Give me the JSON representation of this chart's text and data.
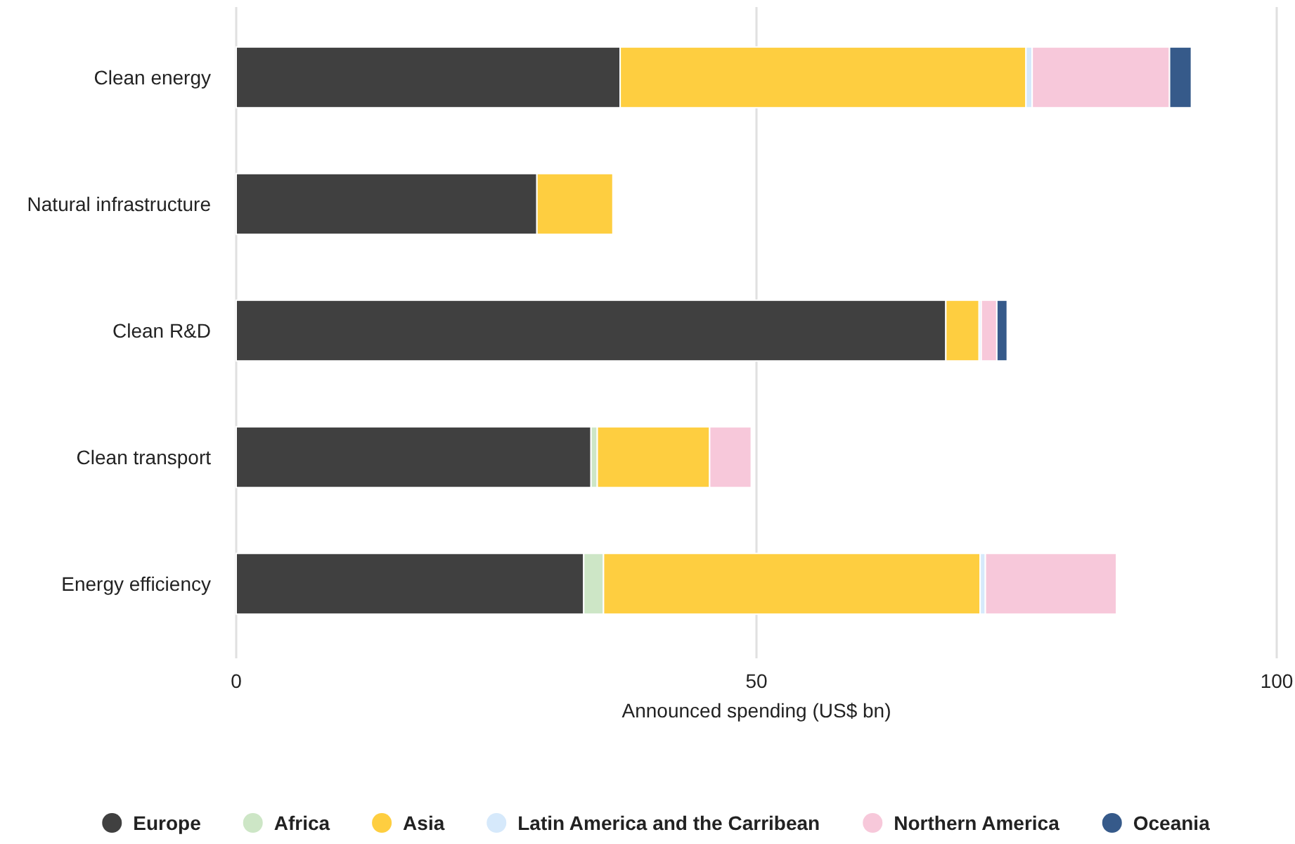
{
  "chart_data": {
    "type": "bar",
    "orientation": "horizontal",
    "stacked": true,
    "xlabel": "Announced spending (US$ bn)",
    "categories": [
      "Clean energy",
      "Natural infrastructure",
      "Clean R&D",
      "Clean transport",
      "Energy efficiency"
    ],
    "series": [
      {
        "name": "Europe",
        "color": "#404040",
        "values": [
          36.9,
          28.9,
          68.2,
          34.1,
          33.4
        ]
      },
      {
        "name": "Africa",
        "color": "#cde6c6",
        "values": [
          null,
          null,
          null,
          0.6,
          1.9
        ]
      },
      {
        "name": "Asia",
        "color": "#fece40",
        "values": [
          39.0,
          7.3,
          3.2,
          10.8,
          36.2
        ]
      },
      {
        "name": "Latin America and the Carribean",
        "color": "#d6e9fb",
        "values": [
          0.6,
          null,
          0.2,
          null,
          0.5
        ]
      },
      {
        "name": "Northern America",
        "color": "#f7c8da",
        "values": [
          13.2,
          null,
          1.5,
          4.0,
          12.6
        ]
      },
      {
        "name": "Oceania",
        "color": "#365a8a",
        "values": [
          2.1,
          null,
          1.0,
          null,
          null
        ]
      }
    ],
    "xlim": [
      0,
      100
    ],
    "xticks": [
      0,
      50,
      100
    ],
    "grid": "x",
    "legend": "bottom"
  }
}
